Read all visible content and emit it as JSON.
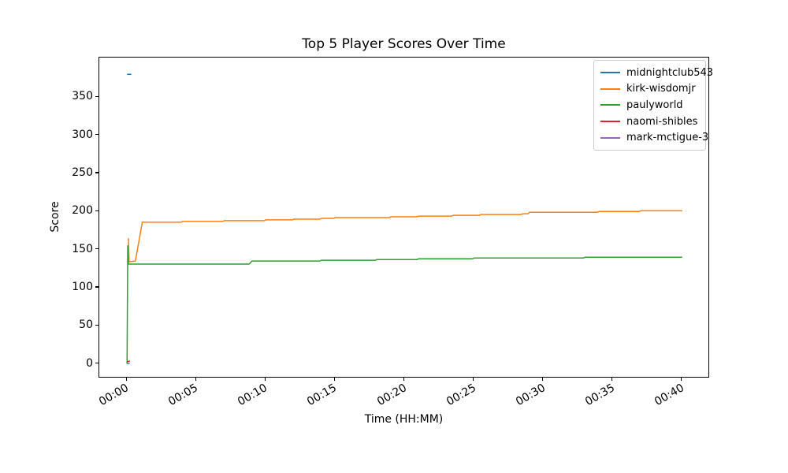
{
  "chart_data": {
    "type": "line",
    "title": "Top 5 Player Scores Over Time",
    "xlabel": "Time (HH:MM)",
    "ylabel": "Score",
    "x_unit": "minutes",
    "xlim": [
      -2,
      42
    ],
    "ylim": [
      -19,
      402
    ],
    "grid": false,
    "legend_position": "upper right",
    "x_ticks": [
      {
        "value": 0,
        "label": "00:00"
      },
      {
        "value": 5,
        "label": "00:05"
      },
      {
        "value": 10,
        "label": "00:10"
      },
      {
        "value": 15,
        "label": "00:15"
      },
      {
        "value": 20,
        "label": "00:20"
      },
      {
        "value": 25,
        "label": "00:25"
      },
      {
        "value": 30,
        "label": "00:30"
      },
      {
        "value": 35,
        "label": "00:35"
      },
      {
        "value": 40,
        "label": "00:40"
      }
    ],
    "y_ticks": [
      {
        "value": 0,
        "label": "0"
      },
      {
        "value": 50,
        "label": "50"
      },
      {
        "value": 100,
        "label": "100"
      },
      {
        "value": 150,
        "label": "150"
      },
      {
        "value": 200,
        "label": "200"
      },
      {
        "value": 250,
        "label": "250"
      },
      {
        "value": 300,
        "label": "300"
      },
      {
        "value": 350,
        "label": "350"
      }
    ],
    "series": [
      {
        "name": "midnightclub543",
        "color": "#1f77b4",
        "points": [
          [
            0,
            380
          ],
          [
            0.3,
            380
          ]
        ]
      },
      {
        "name": "kirk-wisdomjr",
        "color": "#ff7f0e",
        "points": [
          [
            0.1,
            165
          ],
          [
            0.15,
            134
          ],
          [
            0.6,
            135
          ],
          [
            1.1,
            186
          ],
          [
            3.9,
            186
          ],
          [
            4,
            187
          ],
          [
            6.9,
            187
          ],
          [
            7,
            188
          ],
          [
            9.9,
            188
          ],
          [
            10,
            189
          ],
          [
            11.9,
            189
          ],
          [
            12,
            190
          ],
          [
            13.9,
            190
          ],
          [
            14,
            191
          ],
          [
            14.9,
            191
          ],
          [
            15,
            192
          ],
          [
            18.9,
            192
          ],
          [
            19,
            193
          ],
          [
            20.9,
            193
          ],
          [
            21,
            194
          ],
          [
            23.4,
            194
          ],
          [
            23.5,
            195
          ],
          [
            25.4,
            195
          ],
          [
            25.5,
            196
          ],
          [
            28.4,
            196
          ],
          [
            28.5,
            197
          ],
          [
            28.9,
            197
          ],
          [
            29,
            199
          ],
          [
            33.9,
            199
          ],
          [
            34,
            200
          ],
          [
            36.9,
            200
          ],
          [
            37,
            201
          ],
          [
            40,
            201
          ]
        ]
      },
      {
        "name": "paulyworld",
        "color": "#2ca02c",
        "points": [
          [
            0,
            0
          ],
          [
            0.05,
            155
          ],
          [
            0.1,
            131
          ],
          [
            8.8,
            131
          ],
          [
            9,
            135
          ],
          [
            13.9,
            135
          ],
          [
            14,
            136
          ],
          [
            17.9,
            136
          ],
          [
            18,
            137
          ],
          [
            20.9,
            137
          ],
          [
            21,
            138
          ],
          [
            24.9,
            138
          ],
          [
            25,
            139
          ],
          [
            32.9,
            139
          ],
          [
            33,
            140
          ],
          [
            40,
            140
          ]
        ]
      },
      {
        "name": "naomi-shibles",
        "color": "#d62728",
        "points": [
          [
            0,
            2.5
          ],
          [
            0.2,
            4
          ]
        ]
      },
      {
        "name": "mark-mctigue-3",
        "color": "#9467bd",
        "points": [
          [
            0,
            0
          ],
          [
            0.2,
            1
          ]
        ]
      }
    ]
  }
}
